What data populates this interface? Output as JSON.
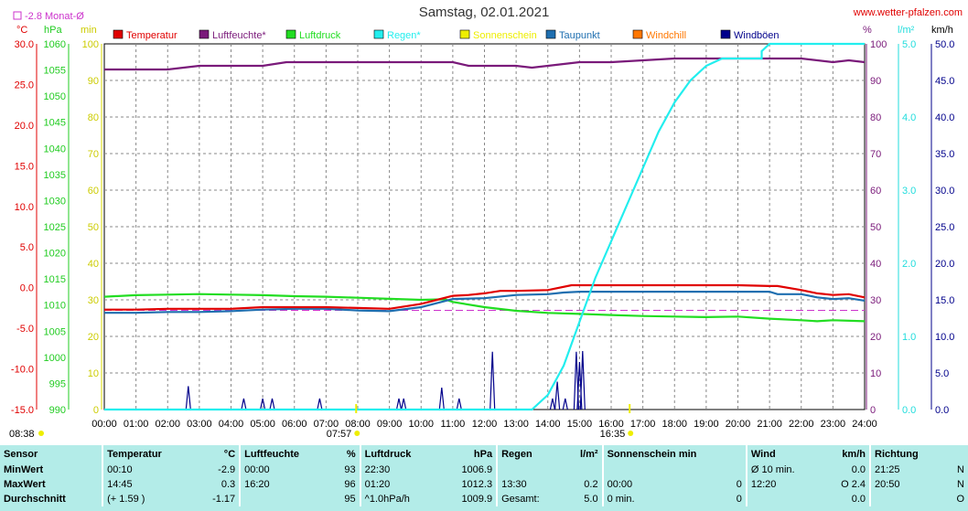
{
  "header": {
    "title": "Samstag, 02.01.2021",
    "site": "www.wetter-pfalzen.com",
    "monthly_avg_label": "-2.8 Monat-Ø"
  },
  "axes": {
    "temp_unit": "°C",
    "pressure_unit": "hPa",
    "sun_unit": "min",
    "humidity_unit": "%",
    "rain_unit": "l/m²",
    "wind_unit": "km/h",
    "temp_ticks": [
      "30.0",
      "25.0",
      "20.0",
      "15.0",
      "10.0",
      "5.0",
      "0.0",
      "-5.0",
      "-10.0",
      "-15.0"
    ],
    "pressure_ticks": [
      "1060",
      "1055",
      "1050",
      "1045",
      "1040",
      "1035",
      "1030",
      "1025",
      "1020",
      "1015",
      "1010",
      "1005",
      "1000",
      "995",
      "990"
    ],
    "sun_ticks": [
      "100",
      "90",
      "80",
      "70",
      "60",
      "50",
      "40",
      "30",
      "20",
      "10",
      "0"
    ],
    "humidity_ticks": [
      "100",
      "90",
      "80",
      "70",
      "60",
      "50",
      "40",
      "30",
      "20",
      "10",
      "0"
    ],
    "rain_ticks": [
      "5.0",
      "4.0",
      "3.0",
      "2.0",
      "1.0",
      "0.0"
    ],
    "wind_ticks": [
      "50.0",
      "45.0",
      "40.0",
      "35.0",
      "30.0",
      "25.0",
      "20.0",
      "15.0",
      "10.0",
      "5.0",
      "0.0"
    ],
    "x_ticks": [
      "00:00",
      "01:00",
      "02:00",
      "03:00",
      "04:00",
      "05:00",
      "06:00",
      "07:00",
      "08:00",
      "09:00",
      "10:00",
      "11:00",
      "12:00",
      "13:00",
      "14:00",
      "15:00",
      "16:00",
      "17:00",
      "18:00",
      "19:00",
      "20:00",
      "21:00",
      "22:00",
      "23:00",
      "24:00"
    ]
  },
  "sun_events": {
    "earliest_sunrise": "08:38",
    "sunrise": "07:57",
    "sunset": "16:35"
  },
  "colors": {
    "temperature": "#e00000",
    "humidity": "#7a1a7a",
    "pressure": "#22dd22",
    "rain": "#22eeee",
    "sunshine": "#eeee00",
    "dewpoint": "#1f6fb0",
    "windchill": "#ff7700",
    "gusts": "#00008b",
    "monthly_avg": "#cc33cc"
  },
  "legend": [
    {
      "label": "Temperatur",
      "color": "#e00000"
    },
    {
      "label": "Luftfeuchte*",
      "color": "#7a1a7a"
    },
    {
      "label": "Luftdruck",
      "color": "#22dd22"
    },
    {
      "label": "Regen*",
      "color": "#22eeee"
    },
    {
      "label": "Sonnenschein",
      "color": "#eeee00"
    },
    {
      "label": "Taupunkt",
      "color": "#1f6fb0"
    },
    {
      "label": "Windchill",
      "color": "#ff7700"
    },
    {
      "label": "Windböen",
      "color": "#00008b"
    }
  ],
  "chart_data": {
    "type": "line",
    "x_range": [
      "00:00",
      "24:00"
    ],
    "temp_ylim": [
      -15,
      30
    ],
    "pressure_ylim": [
      990,
      1060
    ],
    "humidity_ylim": [
      0,
      100
    ],
    "rain_ylim": [
      0,
      5
    ],
    "wind_ylim": [
      0,
      50
    ],
    "monthly_avg_temp": -2.8,
    "grid": true,
    "series": [
      {
        "name": "Temperatur",
        "unit": "°C",
        "x": [
          0,
          1,
          2,
          3,
          4,
          5,
          6,
          7,
          8,
          9,
          10,
          10.5,
          11,
          11.5,
          12,
          12.5,
          13,
          14,
          14.75,
          16,
          17,
          18,
          19,
          20,
          21,
          21.25,
          22,
          22.5,
          23,
          23.5,
          24
        ],
        "values": [
          -2.7,
          -2.7,
          -2.6,
          -2.6,
          -2.6,
          -2.4,
          -2.4,
          -2.4,
          -2.5,
          -2.6,
          -2.0,
          -1.5,
          -1.0,
          -0.9,
          -0.7,
          -0.4,
          -0.4,
          -0.3,
          0.3,
          0.3,
          0.3,
          0.3,
          0.3,
          0.3,
          0.2,
          0.2,
          -0.3,
          -0.7,
          -0.9,
          -0.8,
          -1.2
        ]
      },
      {
        "name": "Luftfeuchte*",
        "unit": "%",
        "x": [
          0,
          1,
          2,
          3,
          4,
          5,
          5.75,
          6,
          7,
          8,
          9,
          10,
          11,
          11.5,
          12,
          13,
          13.5,
          14,
          15,
          16,
          17,
          18,
          19,
          20,
          21,
          22,
          23,
          23.5,
          24
        ],
        "values": [
          93,
          93,
          93,
          94,
          94,
          94,
          95,
          95,
          95,
          95,
          95,
          95,
          95,
          94,
          94,
          94,
          93.5,
          94,
          95,
          95,
          95.5,
          96,
          96,
          96,
          96,
          96,
          95,
          95.5,
          95
        ]
      },
      {
        "name": "Luftdruck",
        "unit": "hPa",
        "x": [
          0,
          1,
          2,
          3,
          4,
          5,
          6,
          7,
          8,
          9,
          10,
          10.75,
          11,
          12,
          13,
          14,
          15,
          16,
          17,
          18,
          19,
          20,
          21,
          22,
          22.5,
          23,
          24
        ],
        "values": [
          1011.6,
          1011.9,
          1012.0,
          1012.1,
          1012.0,
          1011.9,
          1011.7,
          1011.6,
          1011.4,
          1011.2,
          1011.0,
          1011.1,
          1010.6,
          1009.6,
          1008.9,
          1008.5,
          1008.3,
          1008.1,
          1007.9,
          1007.8,
          1007.7,
          1007.8,
          1007.4,
          1007.1,
          1006.9,
          1007.1,
          1006.9
        ]
      },
      {
        "name": "Regen*",
        "unit": "l/m²",
        "x": [
          0,
          13.5,
          14,
          14.5,
          15,
          15.5,
          16,
          16.5,
          17,
          17.5,
          18,
          18.5,
          19,
          19.5,
          20,
          20.5,
          20.75,
          20.75,
          21,
          22,
          24
        ],
        "values": [
          0,
          0,
          0.2,
          0.6,
          1.2,
          1.8,
          2.3,
          2.8,
          3.3,
          3.8,
          4.2,
          4.5,
          4.7,
          4.8,
          4.8,
          4.8,
          4.8,
          4.9,
          5.0,
          5.0,
          5.0
        ]
      },
      {
        "name": "Taupunkt",
        "unit": "°C",
        "x": [
          0,
          1,
          2,
          3,
          4,
          5,
          6,
          7,
          8,
          9,
          10,
          10.5,
          11,
          12,
          13,
          14,
          14.5,
          15,
          16,
          17,
          18,
          19,
          20,
          21,
          21.25,
          22,
          22.5,
          23,
          23.5,
          24
        ],
        "values": [
          -3.1,
          -3.1,
          -3.0,
          -3.0,
          -2.9,
          -2.7,
          -2.6,
          -2.6,
          -2.8,
          -2.9,
          -2.4,
          -1.9,
          -1.4,
          -1.3,
          -0.9,
          -0.8,
          -0.6,
          -0.5,
          -0.5,
          -0.5,
          -0.5,
          -0.5,
          -0.5,
          -0.5,
          -0.8,
          -0.8,
          -1.2,
          -1.4,
          -1.3,
          -1.6
        ]
      },
      {
        "name": "Windböen",
        "unit": "km/h",
        "x": [
          2.65,
          4.4,
          5.0,
          5.3,
          6.8,
          9.3,
          9.45,
          10.65,
          11.2,
          12.25,
          14.15,
          14.3,
          14.55,
          14.9,
          15.0,
          15.1
        ],
        "values": [
          3.2,
          1.5,
          1.5,
          1.5,
          1.5,
          1.5,
          1.5,
          3.0,
          1.5,
          7.9,
          1.5,
          3.8,
          1.5,
          7.9,
          6.5,
          8.0
        ]
      }
    ]
  },
  "stats": {
    "headers": {
      "sensor": "Sensor",
      "temp": "Temperatur",
      "temp_unit": "°C",
      "hum": "Luftfeuchte",
      "hum_unit": "%",
      "press": "Luftdruck",
      "press_unit": "hPa",
      "rain": "Regen",
      "rain_unit": "l/m²",
      "sun": "Sonnenschein min",
      "wind": "Wind",
      "wind_unit": "km/h",
      "dir": "Richtung"
    },
    "rows": [
      {
        "label": "MinWert",
        "temp_time": "00:10",
        "temp_val": "-2.9",
        "hum_time": "00:00",
        "hum_val": "93",
        "press_time": "22:30",
        "press_val": "1006.9",
        "rain_time": "",
        "rain_val": "",
        "sun_time": "",
        "sun_val": "",
        "wind_time": "Ø 10 min.",
        "wind_val": "0.0",
        "dir_time": "21:25",
        "dir_val": "N"
      },
      {
        "label": "MaxWert",
        "temp_time": "14:45",
        "temp_val": "0.3",
        "hum_time": "16:20",
        "hum_val": "96",
        "press_time": "01:20",
        "press_val": "1012.3",
        "rain_time": "13:30",
        "rain_val": "0.2",
        "sun_time": "00:00",
        "sun_val": "0",
        "wind_time": "12:20",
        "wind_val": "O 2.4",
        "dir_time": "20:50",
        "dir_val": "N"
      },
      {
        "label": "Durchschnitt",
        "temp_time": "(+ 1.59 )",
        "temp_val": "-1.17",
        "hum_time": "",
        "hum_val": "95",
        "press_time": "^1.0hPa/h",
        "press_val": "1009.9",
        "rain_time": "Gesamt:",
        "rain_val": "5.0",
        "sun_time": "0 min.",
        "sun_val": "0",
        "wind_time": "",
        "wind_val": "0.0",
        "dir_time": "",
        "dir_val": "O"
      }
    ]
  }
}
